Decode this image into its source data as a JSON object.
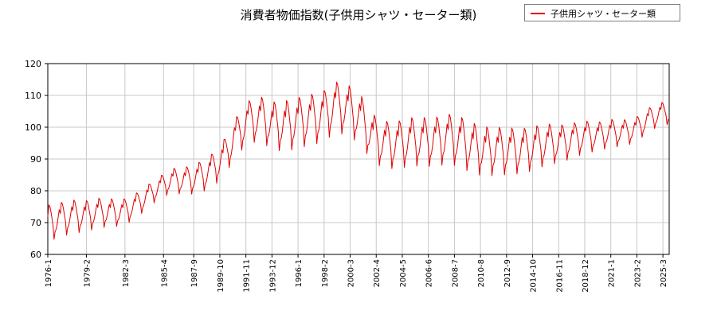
{
  "chart_data": {
    "type": "line",
    "title": "消費者物価指数(子供用シャツ・セーター類)",
    "xlabel": "",
    "ylabel": "",
    "ylim": [
      60,
      120
    ],
    "y_ticks": [
      "60",
      "70",
      "80",
      "90",
      "100",
      "110",
      "120"
    ],
    "x_ticks": [
      "1976-1",
      "1979-2",
      "1982-3",
      "1985-4",
      "1987-9",
      "1989-10",
      "1991-11",
      "1993-12",
      "1996-1",
      "1998-2",
      "2000-3",
      "2002-4",
      "2004-5",
      "2006-6",
      "2008-7",
      "2010-8",
      "2012-9",
      "2014-10",
      "2016-11",
      "2018-12",
      "2021-1",
      "2023-2",
      "2025-3"
    ],
    "x_range": [
      "1976-1",
      "2025-9"
    ],
    "grid": true,
    "legend_position": "top-right",
    "series": [
      {
        "name": "子供用シャツ・セーター類",
        "color": "#e00000",
        "trend_points": [
          [
            "1976-1",
            71
          ],
          [
            "1977-1",
            72
          ],
          [
            "1978-1",
            73
          ],
          [
            "1979-1",
            73
          ],
          [
            "1980-1",
            74
          ],
          [
            "1981-1",
            74
          ],
          [
            "1982-1",
            74
          ],
          [
            "1983-1",
            76
          ],
          [
            "1984-1",
            79
          ],
          [
            "1985-1",
            82
          ],
          [
            "1986-1",
            84
          ],
          [
            "1987-1",
            84
          ],
          [
            "1988-1",
            85
          ],
          [
            "1989-1",
            87
          ],
          [
            "1990-1",
            91
          ],
          [
            "1991-1",
            98
          ],
          [
            "1992-1",
            103
          ],
          [
            "1993-1",
            104
          ],
          [
            "1994-1",
            102
          ],
          [
            "1995-1",
            102
          ],
          [
            "1996-1",
            103
          ],
          [
            "1997-1",
            104
          ],
          [
            "1998-1",
            105
          ],
          [
            "1999-1",
            108
          ],
          [
            "2000-1",
            107
          ],
          [
            "2001-1",
            104
          ],
          [
            "2002-1",
            98
          ],
          [
            "2003-1",
            96
          ],
          [
            "2004-1",
            96
          ],
          [
            "2005-1",
            97
          ],
          [
            "2006-1",
            97
          ],
          [
            "2007-1",
            97
          ],
          [
            "2008-1",
            98
          ],
          [
            "2009-1",
            97
          ],
          [
            "2010-1",
            95
          ],
          [
            "2011-1",
            94
          ],
          [
            "2012-1",
            94
          ],
          [
            "2013-1",
            94
          ],
          [
            "2014-1",
            94
          ],
          [
            "2015-1",
            95
          ],
          [
            "2016-1",
            96
          ],
          [
            "2017-1",
            96
          ],
          [
            "2018-1",
            97
          ],
          [
            "2019-1",
            98
          ],
          [
            "2020-1",
            98
          ],
          [
            "2021-1",
            99
          ],
          [
            "2022-1",
            99
          ],
          [
            "2023-1",
            100
          ],
          [
            "2024-1",
            103
          ],
          [
            "2025-1",
            105
          ],
          [
            "2025-9",
            105
          ]
        ],
        "seasonal_amplitude": [
          [
            "1976-1",
            5
          ],
          [
            "1985-1",
            3
          ],
          [
            "1990-1",
            5
          ],
          [
            "1995-1",
            7
          ],
          [
            "2000-1",
            7
          ],
          [
            "2003-1",
            6.5
          ],
          [
            "2010-1",
            7
          ],
          [
            "2015-1",
            6
          ],
          [
            "2020-1",
            4
          ],
          [
            "2025-9",
            3
          ]
        ]
      }
    ]
  },
  "legend": {
    "label": "子供用シャツ・セーター類",
    "color": "#e00000"
  }
}
